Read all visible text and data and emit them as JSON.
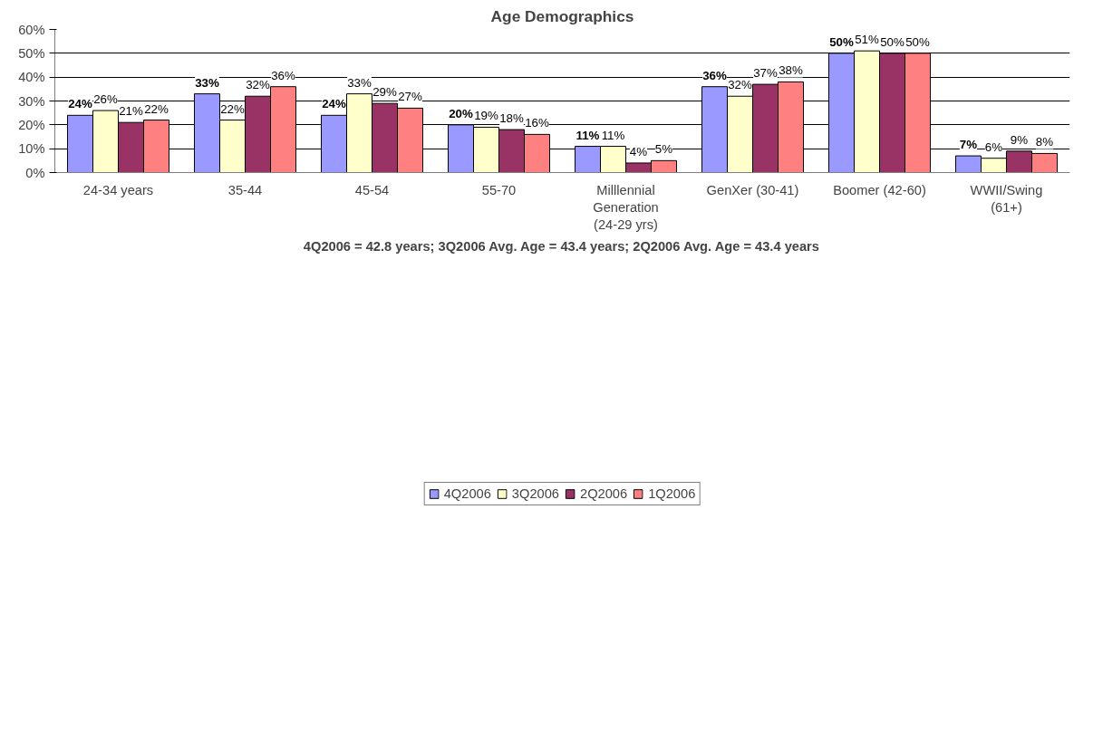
{
  "chart_data": {
    "type": "bar",
    "title": "Age Demographics",
    "xlabel": "4Q2006 = 42.8 years; 3Q2006 Avg. Age = 43.4 years; 2Q2006 Avg. Age = 43.4 years",
    "categories": [
      "24-34 years",
      "35-44",
      "45-54",
      "55-70",
      "Milllennial Generation (24-29 yrs)",
      "GenXer (30-41)",
      "Boomer (42-60)",
      "WWII/Swing (61+)"
    ],
    "series": [
      {
        "name": "4Q2006",
        "color": "#9999ff",
        "values": [
          24,
          33,
          24,
          20,
          11,
          36,
          50,
          7
        ],
        "value_labels": [
          "24%",
          "33%",
          "24%",
          "20%",
          "11%",
          "36%",
          "50%",
          "7%"
        ]
      },
      {
        "name": "3Q2006",
        "color": "#ffffcc",
        "values": [
          26,
          22,
          33,
          19,
          11,
          32,
          51,
          6
        ],
        "value_labels": [
          "26%",
          "22%",
          "33%",
          "19%",
          "11%",
          "32%",
          "51%",
          "6%"
        ]
      },
      {
        "name": "2Q2006",
        "color": "#993366",
        "values": [
          21,
          32,
          29,
          18,
          4,
          37,
          50,
          9
        ],
        "value_labels": [
          "21%",
          "32%",
          "29%",
          "18%",
          "4%",
          "37%",
          "50%",
          "9%"
        ]
      },
      {
        "name": "1Q2006",
        "color": "#ff8080",
        "values": [
          22,
          36,
          27,
          16,
          5,
          38,
          50,
          8
        ],
        "value_labels": [
          "22%",
          "36%",
          "27%",
          "16%",
          "5%",
          "38%",
          "50%",
          "8%"
        ]
      }
    ],
    "ylim": [
      0,
      60
    ],
    "yticks": [
      {
        "value": 0,
        "label": "0%"
      },
      {
        "value": 10,
        "label": "10%"
      },
      {
        "value": 20,
        "label": "20%"
      },
      {
        "value": 30,
        "label": "30%"
      },
      {
        "value": 40,
        "label": "40%"
      },
      {
        "value": 50,
        "label": "50%"
      },
      {
        "value": 60,
        "label": "60%"
      }
    ],
    "grid": "y",
    "legend": "bottom"
  }
}
